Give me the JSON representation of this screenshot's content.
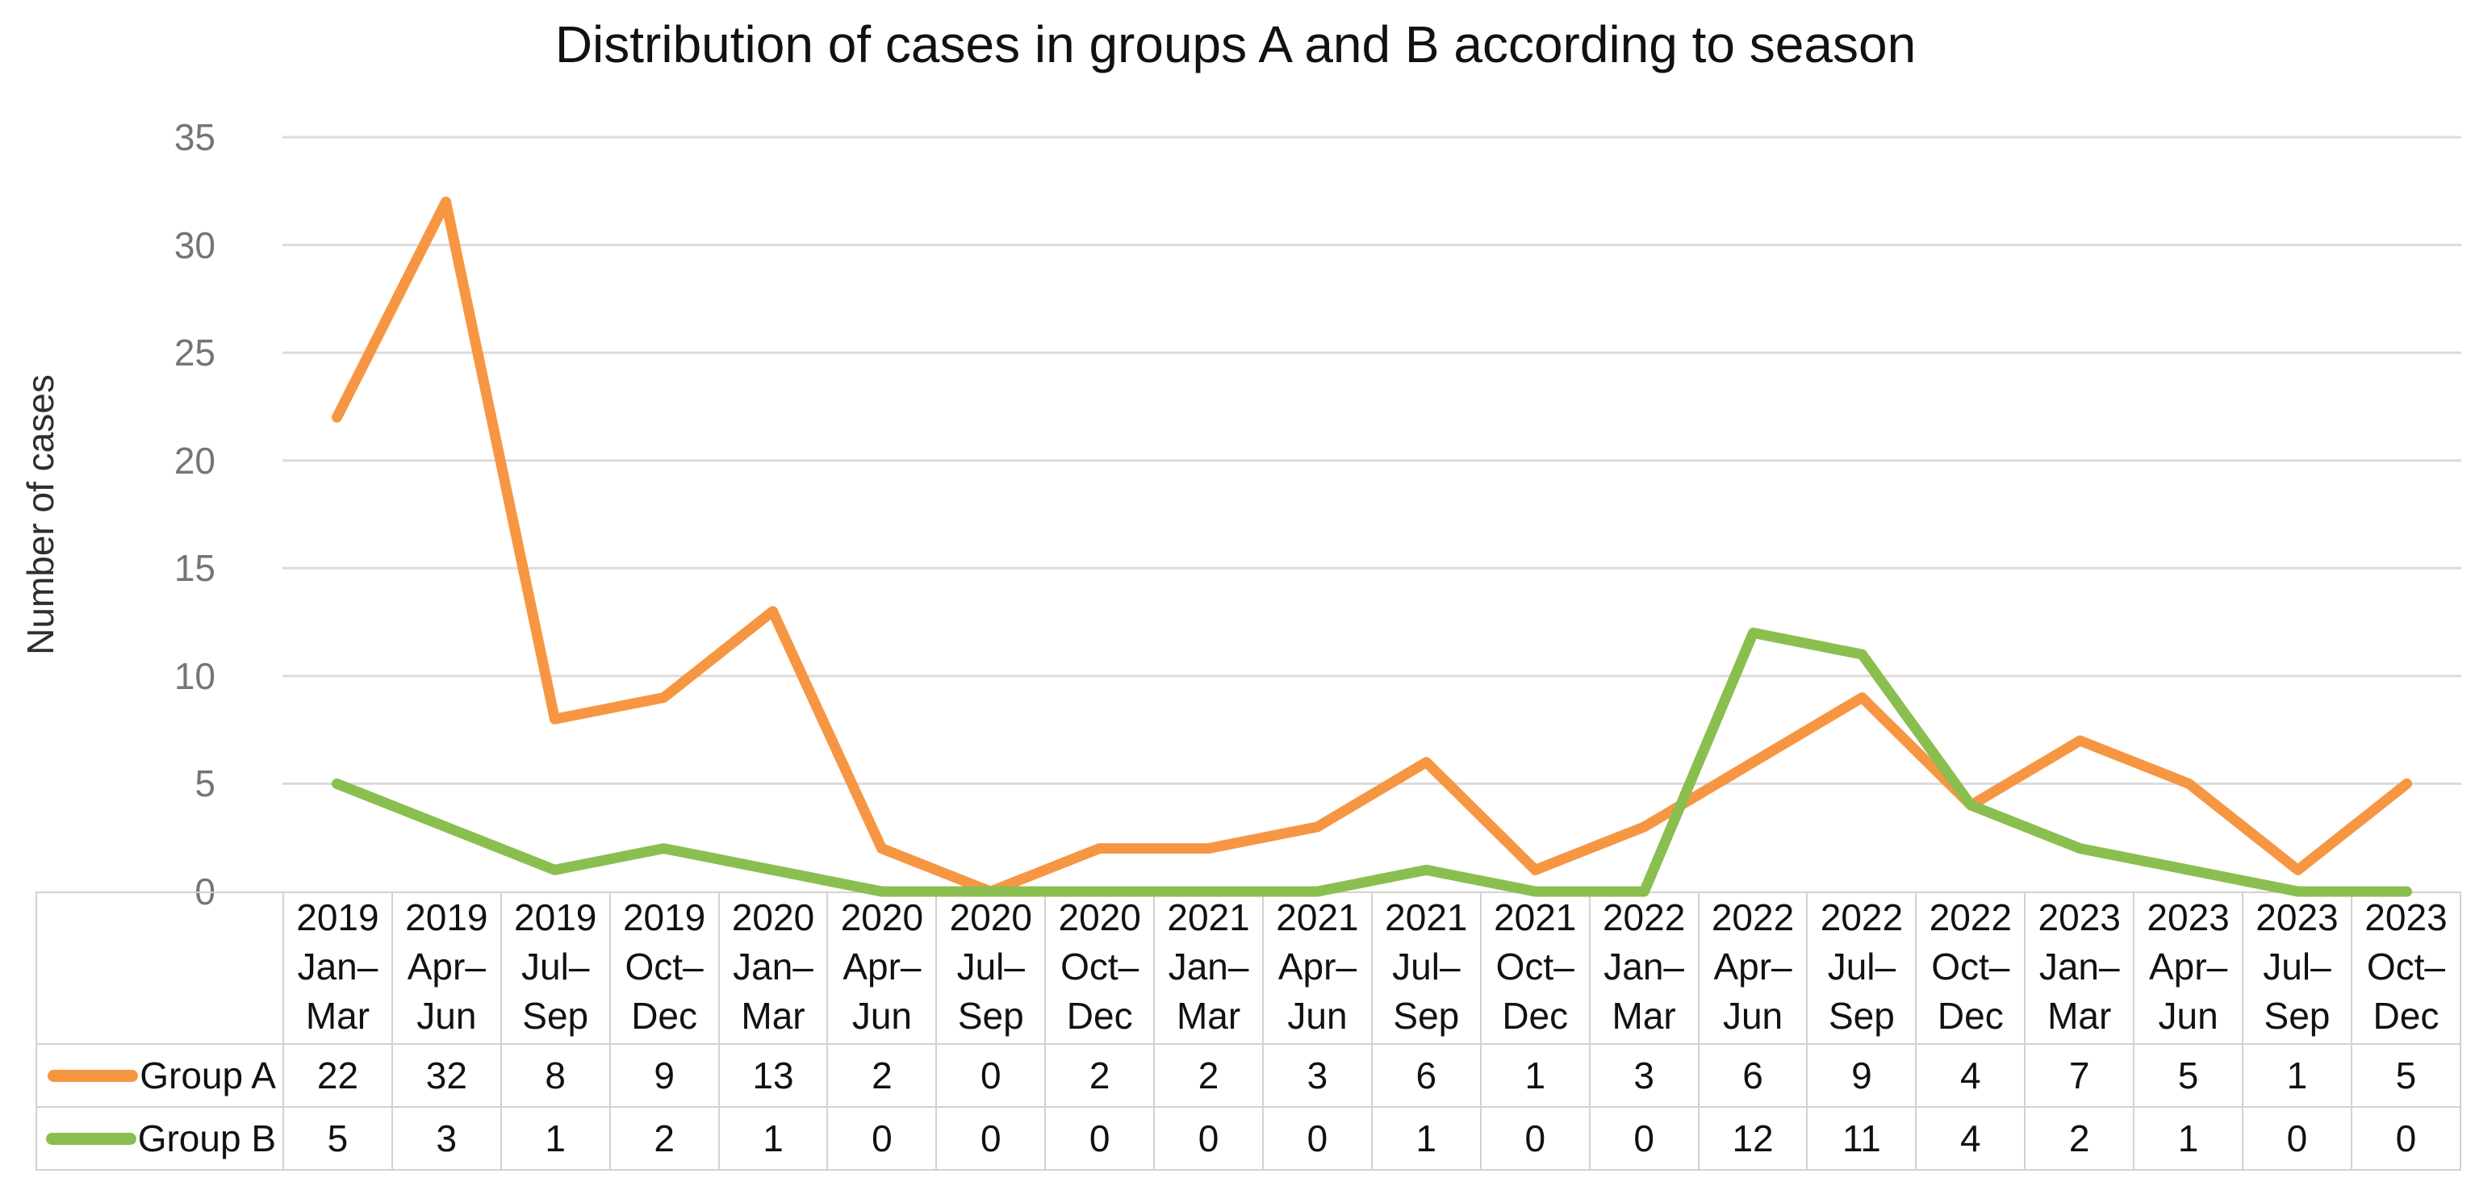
{
  "title": "Distribution of cases in groups A and B according to season",
  "y_axis": {
    "label": "Number of cases",
    "ticks": [
      0,
      5,
      10,
      15,
      20,
      25,
      30,
      35
    ]
  },
  "colors": {
    "gridline": "#dbdbdb",
    "table_border": "#d2d2d2",
    "tick_text": "#757575",
    "group_a": "#F79642",
    "group_b": "#8ABF50"
  },
  "chart_data": {
    "type": "line",
    "title": "Distribution of cases in groups A and B according to season",
    "xlabel": "",
    "ylabel": "Number of cases",
    "ylim": [
      0,
      35
    ],
    "yticks": [
      0,
      5,
      10,
      15,
      20,
      25,
      30,
      35
    ],
    "grid": "horizontal",
    "legend_position": "left-of-data-table-rows",
    "data_table_shown": true,
    "categories": [
      "2019 Jan–Mar",
      "2019 Apr–Jun",
      "2019 Jul–Sep",
      "2019 Oct–Dec",
      "2020 Jan–Mar",
      "2020 Apr–Jun",
      "2020 Jul–Sep",
      "2020 Oct–Dec",
      "2021 Jan–Mar",
      "2021 Apr–Jun",
      "2021 Jul–Sep",
      "2021 Oct–Dec",
      "2022 Jan–Mar",
      "2022 Apr–Jun",
      "2022 Jul–Sep",
      "2022 Oct–Dec",
      "2023 Jan–Mar",
      "2023 Apr–Jun",
      "2023 Jul–Sep",
      "2023 Oct–Dec"
    ],
    "series": [
      {
        "name": "Group A",
        "color": "#F79642",
        "values": [
          22,
          32,
          8,
          9,
          13,
          2,
          0,
          2,
          2,
          3,
          6,
          1,
          3,
          6,
          9,
          4,
          7,
          5,
          1,
          5
        ]
      },
      {
        "name": "Group B",
        "color": "#8ABF50",
        "values": [
          5,
          3,
          1,
          2,
          1,
          0,
          0,
          0,
          0,
          0,
          1,
          0,
          0,
          12,
          11,
          4,
          2,
          1,
          0,
          0
        ]
      }
    ]
  }
}
